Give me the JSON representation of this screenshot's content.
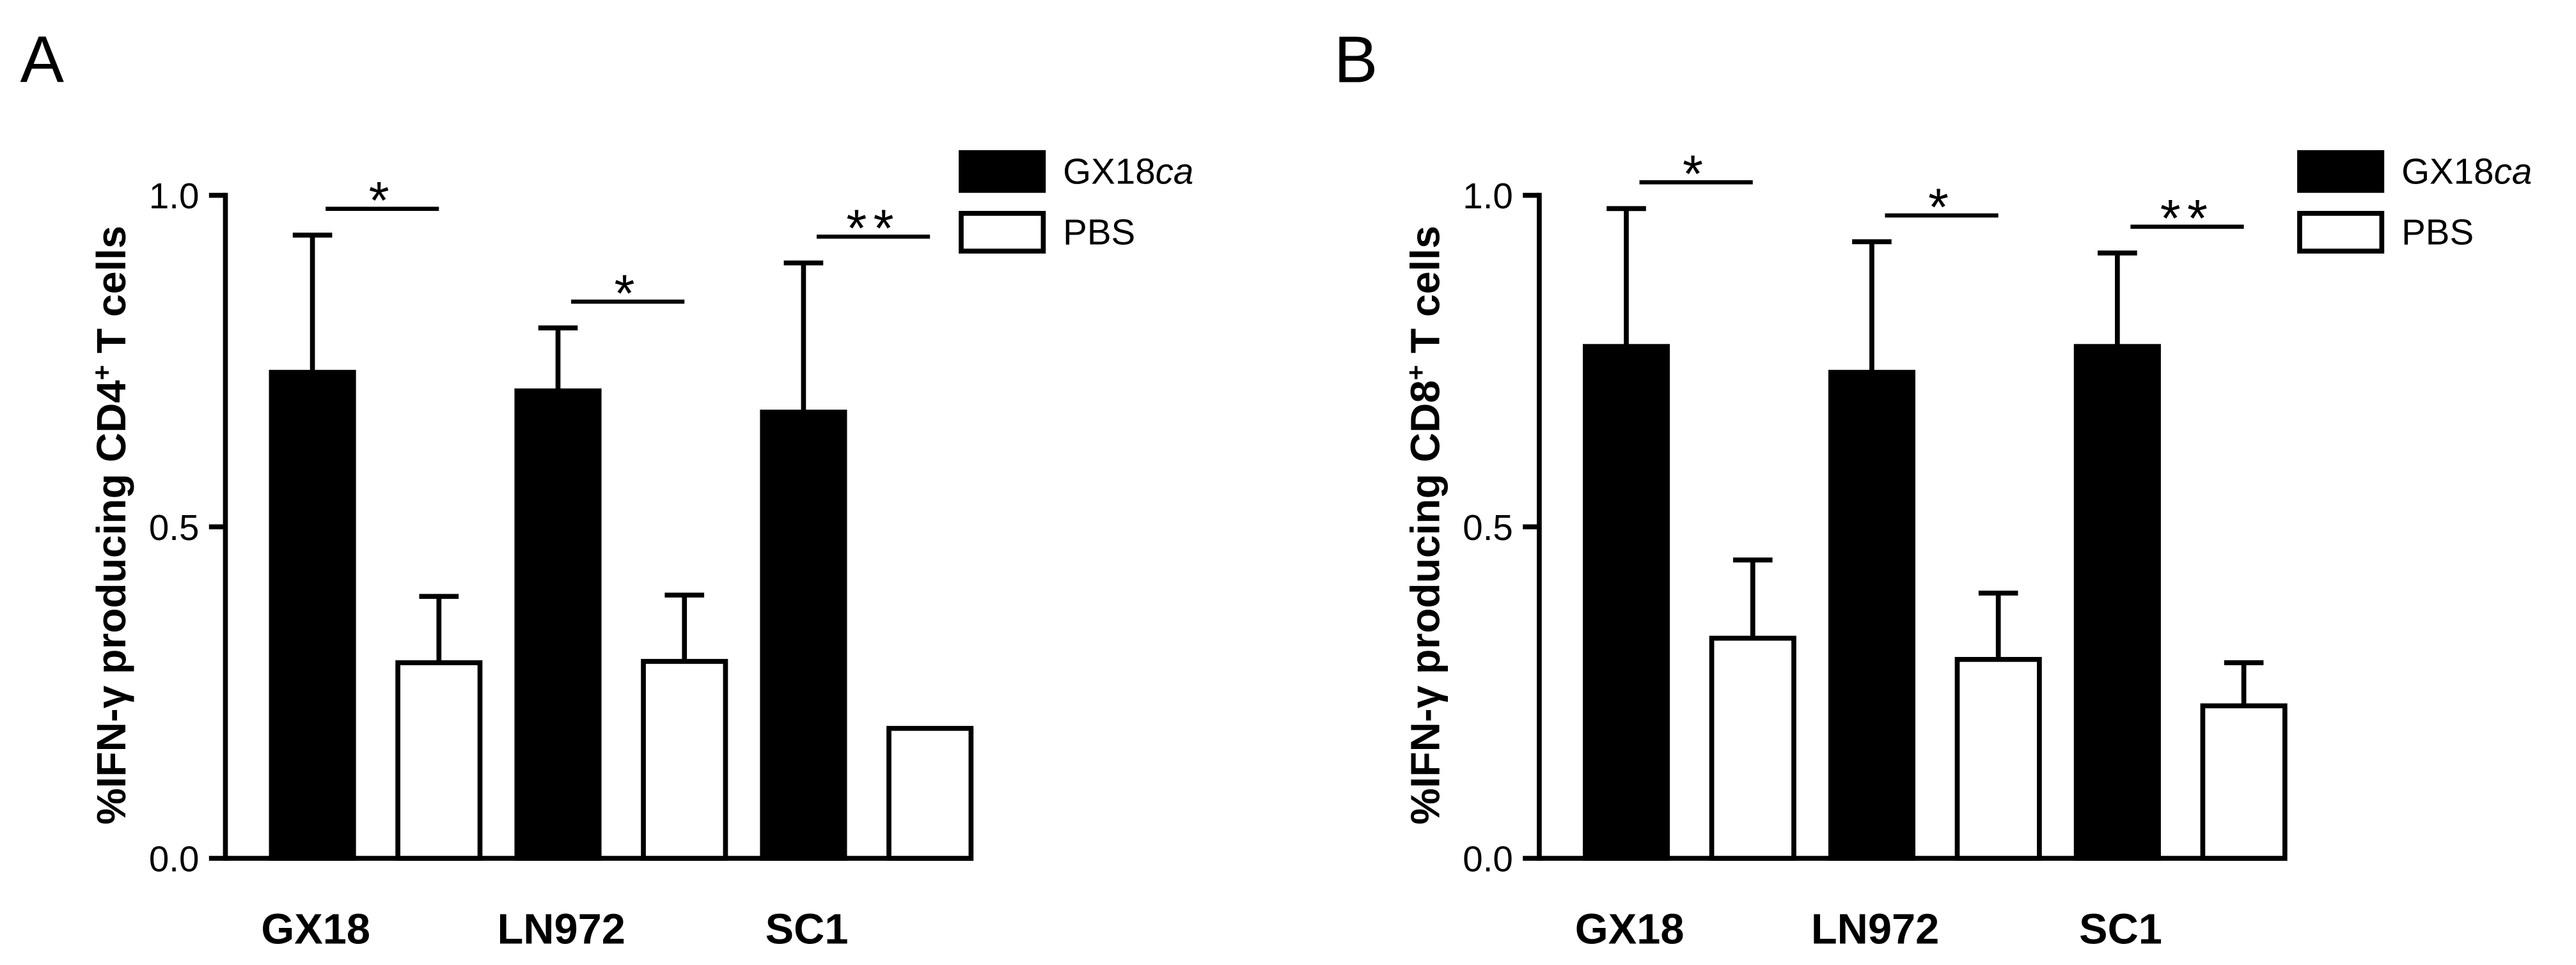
{
  "chart_data": [
    {
      "type": "bar",
      "panel": "A",
      "ylabel": "%IFN-γ producing CD4",
      "ylabel_sup": "+",
      "ylabel_tail": "T cells",
      "categories": [
        "GX18",
        "LN972",
        "SC1"
      ],
      "series": [
        {
          "name": "GX18",
          "name_italic": "ca",
          "color": "#000000",
          "values": [
            0.733,
            0.705,
            0.673
          ],
          "errors": [
            0.207,
            0.095,
            0.225
          ]
        },
        {
          "name": "PBS",
          "color": "#ffffff",
          "values": [
            0.295,
            0.297,
            0.196
          ],
          "errors": [
            0.1,
            0.1,
            null
          ]
        }
      ],
      "annotations": [
        "*",
        "*",
        "**"
      ],
      "ylim": [
        0,
        1.0
      ],
      "yticks": [
        {
          "value": 0,
          "label": "0.0"
        },
        0.5,
        {
          "value": 1.0,
          "label": "1.0"
        }
      ]
    },
    {
      "type": "bar",
      "panel": "B",
      "ylabel": "%IFN-γ producing CD8",
      "ylabel_sup": "+",
      "ylabel_tail": "T cells",
      "categories": [
        "GX18",
        "LN972",
        "SC1"
      ],
      "series": [
        {
          "name": "GX18",
          "name_italic": "ca",
          "color": "#000000",
          "values": [
            0.772,
            0.733,
            0.772
          ],
          "errors": [
            0.208,
            0.197,
            0.141
          ]
        },
        {
          "name": "PBS",
          "color": "#ffffff",
          "values": [
            0.332,
            0.3,
            0.23
          ],
          "errors": [
            0.118,
            0.1,
            0.065
          ]
        }
      ],
      "annotations": [
        "*",
        "*",
        "**"
      ],
      "ylim": [
        0,
        1.0
      ],
      "yticks": [
        {
          "value": 0,
          "label": "0.0"
        },
        0.5,
        {
          "value": 1.0,
          "label": "1.0"
        }
      ]
    }
  ]
}
